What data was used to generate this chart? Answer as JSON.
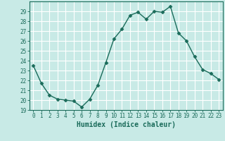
{
  "x": [
    0,
    1,
    2,
    3,
    4,
    5,
    6,
    7,
    8,
    9,
    10,
    11,
    12,
    13,
    14,
    15,
    16,
    17,
    18,
    19,
    20,
    21,
    22,
    23
  ],
  "y": [
    23.5,
    21.7,
    20.5,
    20.1,
    20.0,
    19.9,
    19.3,
    20.1,
    21.5,
    23.8,
    26.2,
    27.2,
    28.6,
    28.9,
    28.2,
    29.0,
    28.9,
    29.5,
    26.8,
    26.0,
    24.4,
    23.1,
    22.7,
    22.1
  ],
  "line_color": "#1a6b5a",
  "marker": "D",
  "marker_size": 2.5,
  "linewidth": 1.0,
  "bg_color": "#c8eae6",
  "grid_color": "#ffffff",
  "xlabel": "Humidex (Indice chaleur)",
  "ylim": [
    19,
    30
  ],
  "xlim": [
    -0.5,
    23.5
  ],
  "yticks": [
    19,
    20,
    21,
    22,
    23,
    24,
    25,
    26,
    27,
    28,
    29
  ],
  "xticks": [
    0,
    1,
    2,
    3,
    4,
    5,
    6,
    7,
    8,
    9,
    10,
    11,
    12,
    13,
    14,
    15,
    16,
    17,
    18,
    19,
    20,
    21,
    22,
    23
  ],
  "tick_fontsize": 5.5,
  "xlabel_fontsize": 7.0,
  "tick_color": "#1a6b5a",
  "spine_color": "#1a6b5a",
  "label_color": "#1a6b5a"
}
